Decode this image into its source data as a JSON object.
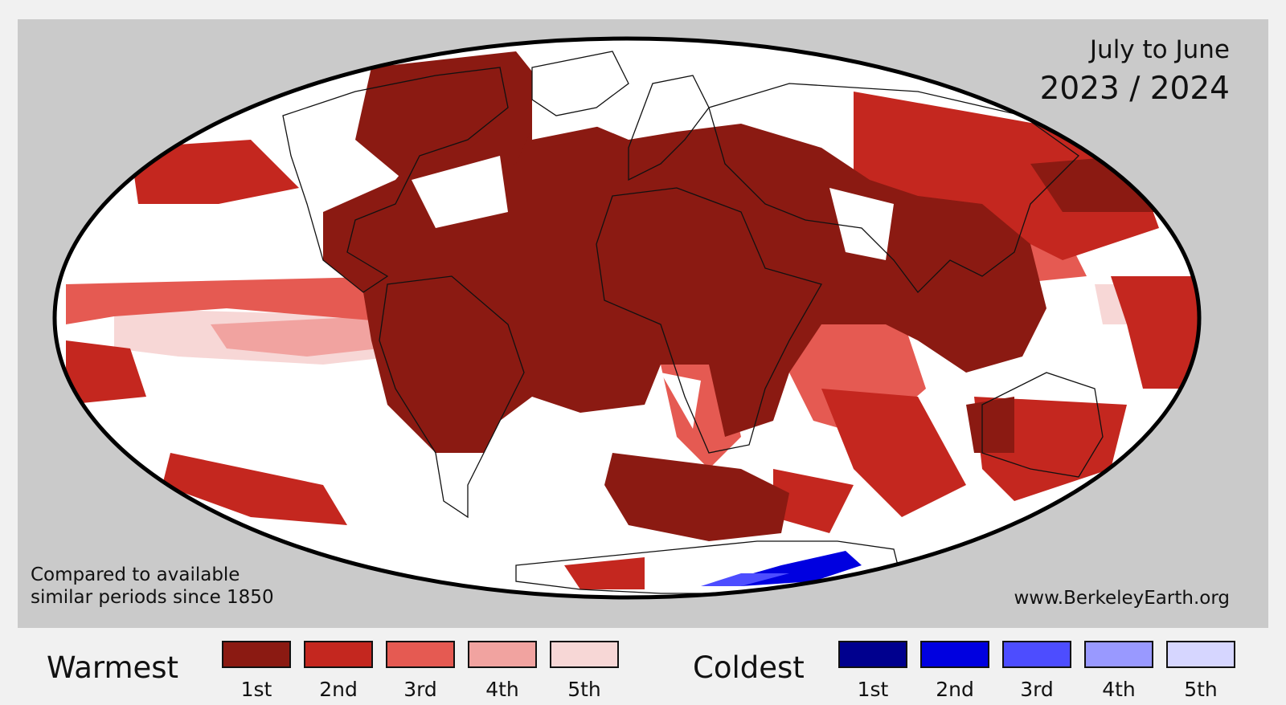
{
  "map": {
    "period": "July to June",
    "years": "2023 / 2024",
    "note_line1": "Compared to available",
    "note_line2": "similar periods since 1850",
    "source": "www.BerkeleyEarth.org",
    "projection": "mollweide",
    "ocean_color": "#ffffff",
    "background_color": "#cacaca"
  },
  "legend": {
    "warmest": {
      "title": "Warmest",
      "items": [
        {
          "label": "1st",
          "color": "#8b1a12"
        },
        {
          "label": "2nd",
          "color": "#c4271f"
        },
        {
          "label": "3rd",
          "color": "#e55a52"
        },
        {
          "label": "4th",
          "color": "#f1a3a0"
        },
        {
          "label": "5th",
          "color": "#f7d7d6"
        }
      ]
    },
    "coldest": {
      "title": "Coldest",
      "items": [
        {
          "label": "1st",
          "color": "#00008e"
        },
        {
          "label": "2nd",
          "color": "#0000e0"
        },
        {
          "label": "3rd",
          "color": "#4d4dff"
        },
        {
          "label": "4th",
          "color": "#9999ff"
        },
        {
          "label": "5th",
          "color": "#d6d6ff"
        }
      ]
    }
  }
}
